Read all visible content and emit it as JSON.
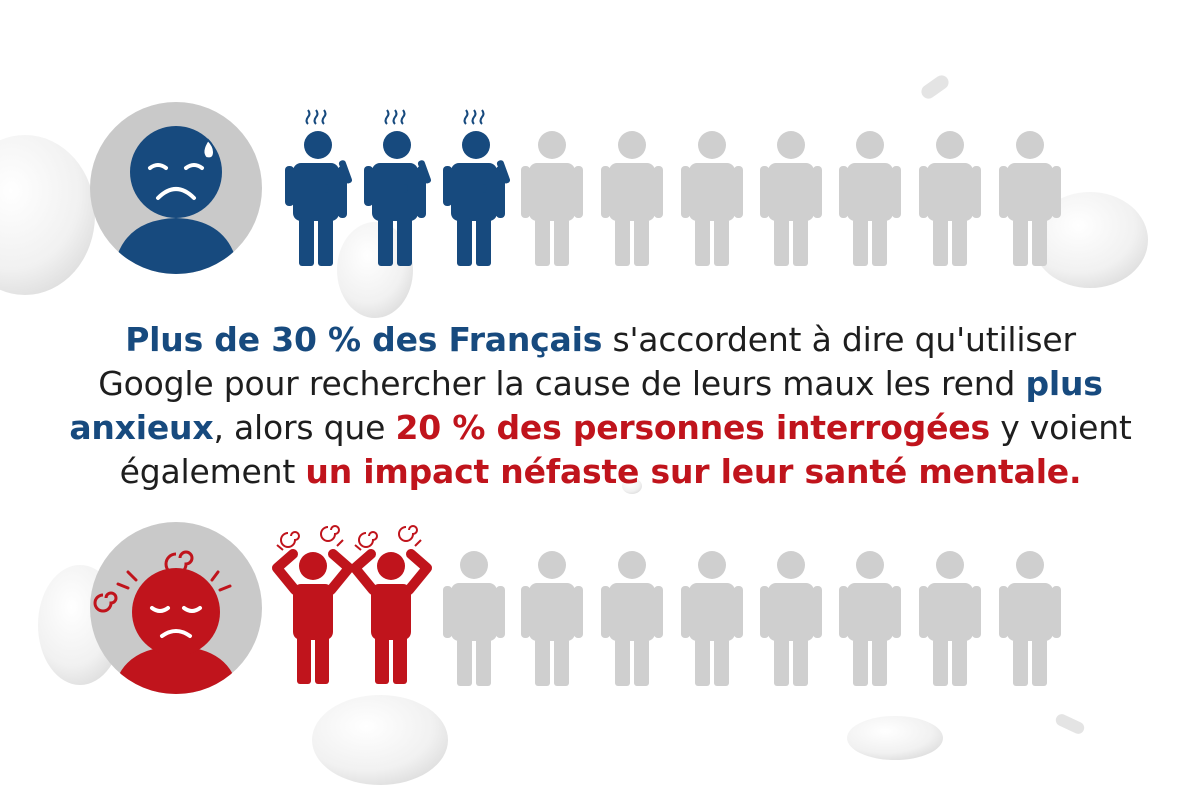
{
  "colors": {
    "blue": "#174a7e",
    "red": "#c0141c",
    "gray_person": "#cfcfcf",
    "avatar_circle": "#c9c9c9",
    "text": "#1e1e1e"
  },
  "top_row": {
    "icon": "anxious-person-icon",
    "avatar_icon": "worried-face-avatar-icon",
    "highlighted": 3,
    "total": 10,
    "highlight_color": "#174a7e"
  },
  "bottom_row": {
    "icon": "stressed-person-icon",
    "avatar_icon": "dizzy-face-avatar-icon",
    "highlighted": 2,
    "total": 10,
    "highlight_color": "#c0141c"
  },
  "message": {
    "part1": "Plus de 30 % des Français",
    "part2": " s'accordent à dire qu'utiliser",
    "part3": "Google pour rechercher la cause de leurs maux les rend ",
    "part4": "plus anxieux",
    "part5": ", alors que ",
    "part6": "20 % des personnes interrogées",
    "part7": " y voient",
    "part8": "également ",
    "part9": "un impact néfaste sur leur santé mentale."
  }
}
